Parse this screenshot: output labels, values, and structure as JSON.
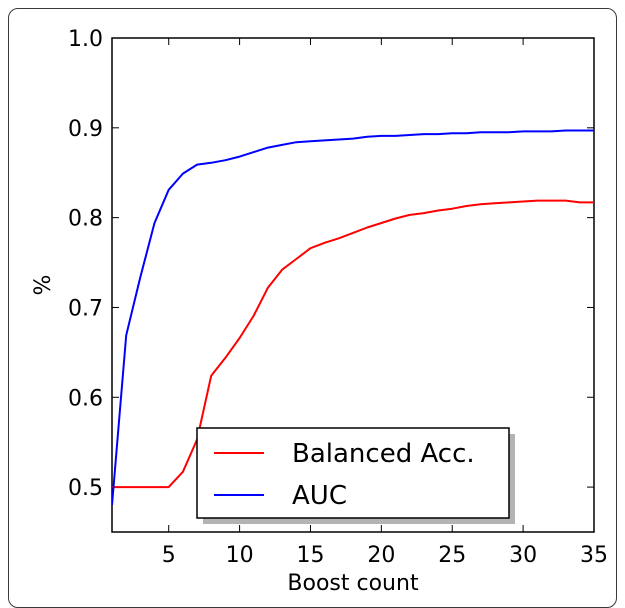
{
  "chart_data": {
    "type": "line",
    "title": "",
    "xlabel": "Boost count",
    "ylabel": "%",
    "xlim": [
      1,
      35
    ],
    "ylim": [
      0.45,
      1.0
    ],
    "xticks": [
      5,
      10,
      15,
      20,
      25,
      30,
      35
    ],
    "xtick_labels": [
      "5",
      "10",
      "15",
      "20",
      "25",
      "30",
      "35"
    ],
    "yticks": [
      0.5,
      0.6,
      0.7,
      0.8,
      0.9,
      1.0
    ],
    "ytick_labels": [
      "0.5",
      "0.6",
      "0.7",
      "0.8",
      "0.9",
      "1.0"
    ],
    "grid": false,
    "legend": "lower-right",
    "series": [
      {
        "name": "Balanced Acc.",
        "color": "#ff0000",
        "x": [
          1,
          2,
          3,
          4,
          5,
          6,
          7,
          8,
          9,
          10,
          11,
          12,
          13,
          14,
          15,
          16,
          17,
          18,
          19,
          20,
          21,
          22,
          23,
          24,
          25,
          26,
          27,
          28,
          29,
          30,
          31,
          32,
          33,
          34,
          35
        ],
        "values": [
          0.5,
          0.5,
          0.5,
          0.5,
          0.5,
          0.517,
          0.553,
          0.624,
          0.644,
          0.666,
          0.691,
          0.722,
          0.742,
          0.754,
          0.766,
          0.772,
          0.777,
          0.783,
          0.789,
          0.794,
          0.799,
          0.803,
          0.805,
          0.808,
          0.81,
          0.813,
          0.815,
          0.816,
          0.817,
          0.818,
          0.819,
          0.819,
          0.819,
          0.817,
          0.817
        ]
      },
      {
        "name": "AUC",
        "color": "#0000ff",
        "x": [
          1,
          2,
          3,
          4,
          5,
          6,
          7,
          8,
          9,
          10,
          11,
          12,
          13,
          14,
          15,
          16,
          17,
          18,
          19,
          20,
          21,
          22,
          23,
          24,
          25,
          26,
          27,
          28,
          29,
          30,
          31,
          32,
          33,
          34,
          35
        ],
        "values": [
          0.48,
          0.669,
          0.734,
          0.794,
          0.831,
          0.849,
          0.859,
          0.861,
          0.864,
          0.868,
          0.873,
          0.878,
          0.881,
          0.884,
          0.885,
          0.886,
          0.887,
          0.888,
          0.89,
          0.891,
          0.891,
          0.892,
          0.893,
          0.893,
          0.894,
          0.894,
          0.895,
          0.895,
          0.895,
          0.896,
          0.896,
          0.896,
          0.897,
          0.897,
          0.897
        ]
      }
    ]
  }
}
